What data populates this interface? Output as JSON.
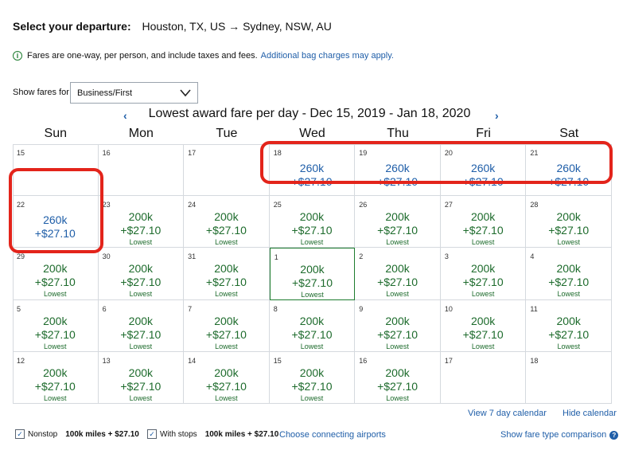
{
  "header": {
    "label": "Select your departure:",
    "route": "Houston, TX, US → Sydney, NSW, AU"
  },
  "notice": {
    "icon": "info-icon",
    "text": "Fares are one-way, per person, and include taxes and fees.",
    "link": "Additional bag charges may apply."
  },
  "fare_filter": {
    "label": "Show fares for",
    "selected": "Business/First"
  },
  "calendar": {
    "title": "Lowest award fare per day - Dec 15, 2019 - Jan 18, 2020",
    "prev_icon": "chevron-left-icon",
    "next_icon": "chevron-right-icon",
    "weekdays": [
      "Sun",
      "Mon",
      "Tue",
      "Wed",
      "Thu",
      "Fri",
      "Sat"
    ],
    "rows": [
      [
        {
          "day": "15"
        },
        {
          "day": "16"
        },
        {
          "day": "17"
        },
        {
          "day": "18",
          "miles": "260k",
          "tax": "+$27.10",
          "color": "blue"
        },
        {
          "day": "19",
          "miles": "260k",
          "tax": "+$27.10",
          "color": "blue"
        },
        {
          "day": "20",
          "miles": "260k",
          "tax": "+$27.10",
          "color": "blue"
        },
        {
          "day": "21",
          "miles": "260k",
          "tax": "+$27.10",
          "color": "blue"
        }
      ],
      [
        {
          "day": "22",
          "miles": "260k",
          "tax": "+$27.10",
          "color": "blue"
        },
        {
          "day": "23",
          "miles": "200k",
          "tax": "+$27.10",
          "tag": "Lowest",
          "color": "green"
        },
        {
          "day": "24",
          "miles": "200k",
          "tax": "+$27.10",
          "tag": "Lowest",
          "color": "green"
        },
        {
          "day": "25",
          "miles": "200k",
          "tax": "+$27.10",
          "tag": "Lowest",
          "color": "green"
        },
        {
          "day": "26",
          "miles": "200k",
          "tax": "+$27.10",
          "tag": "Lowest",
          "color": "green"
        },
        {
          "day": "27",
          "miles": "200k",
          "tax": "+$27.10",
          "tag": "Lowest",
          "color": "green"
        },
        {
          "day": "28",
          "miles": "200k",
          "tax": "+$27.10",
          "tag": "Lowest",
          "color": "green"
        }
      ],
      [
        {
          "day": "29",
          "miles": "200k",
          "tax": "+$27.10",
          "tag": "Lowest",
          "color": "green"
        },
        {
          "day": "30",
          "miles": "200k",
          "tax": "+$27.10",
          "tag": "Lowest",
          "color": "green"
        },
        {
          "day": "31",
          "miles": "200k",
          "tax": "+$27.10",
          "tag": "Lowest",
          "color": "green"
        },
        {
          "day": "1",
          "miles": "200k",
          "tax": "+$27.10",
          "tag": "Lowest",
          "color": "green",
          "selected": true
        },
        {
          "day": "2",
          "miles": "200k",
          "tax": "+$27.10",
          "tag": "Lowest",
          "color": "green"
        },
        {
          "day": "3",
          "miles": "200k",
          "tax": "+$27.10",
          "tag": "Lowest",
          "color": "green"
        },
        {
          "day": "4",
          "miles": "200k",
          "tax": "+$27.10",
          "tag": "Lowest",
          "color": "green"
        }
      ],
      [
        {
          "day": "5",
          "miles": "200k",
          "tax": "+$27.10",
          "tag": "Lowest",
          "color": "green"
        },
        {
          "day": "6",
          "miles": "200k",
          "tax": "+$27.10",
          "tag": "Lowest",
          "color": "green"
        },
        {
          "day": "7",
          "miles": "200k",
          "tax": "+$27.10",
          "tag": "Lowest",
          "color": "green"
        },
        {
          "day": "8",
          "miles": "200k",
          "tax": "+$27.10",
          "tag": "Lowest",
          "color": "green"
        },
        {
          "day": "9",
          "miles": "200k",
          "tax": "+$27.10",
          "tag": "Lowest",
          "color": "green"
        },
        {
          "day": "10",
          "miles": "200k",
          "tax": "+$27.10",
          "tag": "Lowest",
          "color": "green"
        },
        {
          "day": "11",
          "miles": "200k",
          "tax": "+$27.10",
          "tag": "Lowest",
          "color": "green"
        }
      ],
      [
        {
          "day": "12",
          "miles": "200k",
          "tax": "+$27.10",
          "tag": "Lowest",
          "color": "green"
        },
        {
          "day": "13",
          "miles": "200k",
          "tax": "+$27.10",
          "tag": "Lowest",
          "color": "green"
        },
        {
          "day": "14",
          "miles": "200k",
          "tax": "+$27.10",
          "tag": "Lowest",
          "color": "green"
        },
        {
          "day": "15",
          "miles": "200k",
          "tax": "+$27.10",
          "tag": "Lowest",
          "color": "green"
        },
        {
          "day": "16",
          "miles": "200k",
          "tax": "+$27.10",
          "tag": "Lowest",
          "color": "green"
        },
        {
          "day": "17"
        },
        {
          "day": "18"
        }
      ]
    ]
  },
  "links": {
    "view_7_day": "View 7 day calendar",
    "hide_calendar": "Hide calendar",
    "connecting": "Choose connecting airports",
    "fare_comparison": "Show fare type comparison"
  },
  "legend": {
    "nonstop_label": "Nonstop",
    "nonstop_price": "100k miles + $27.10",
    "stops_label": "With stops",
    "stops_price": "100k miles + $27.10"
  },
  "colors": {
    "green": "#1d6b2c",
    "blue": "#1f5ea8",
    "highlight": "#e3241b"
  }
}
